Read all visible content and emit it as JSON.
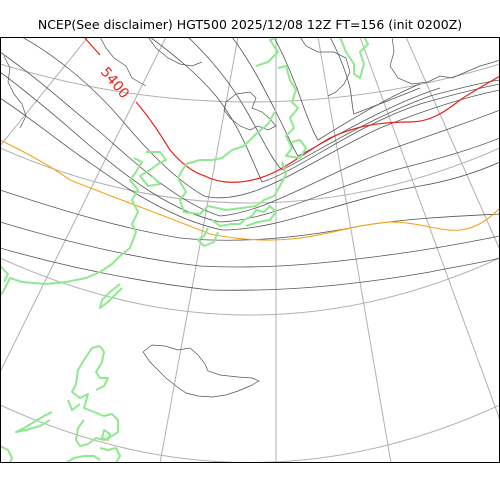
{
  "title": "NCEP(See disclaimer) HGT500 2025/12/08 12Z FT=156 (init 0200Z)",
  "contour_label": "5400",
  "colors": {
    "background": "#ffffff",
    "frame": "#000000",
    "graticule": "#b0b0b0",
    "contour": "#555555",
    "contour_5400": "#e8231a",
    "contour_5700": "#f5a31a",
    "coastline": "#90e890",
    "land_outline": "#555555"
  }
}
